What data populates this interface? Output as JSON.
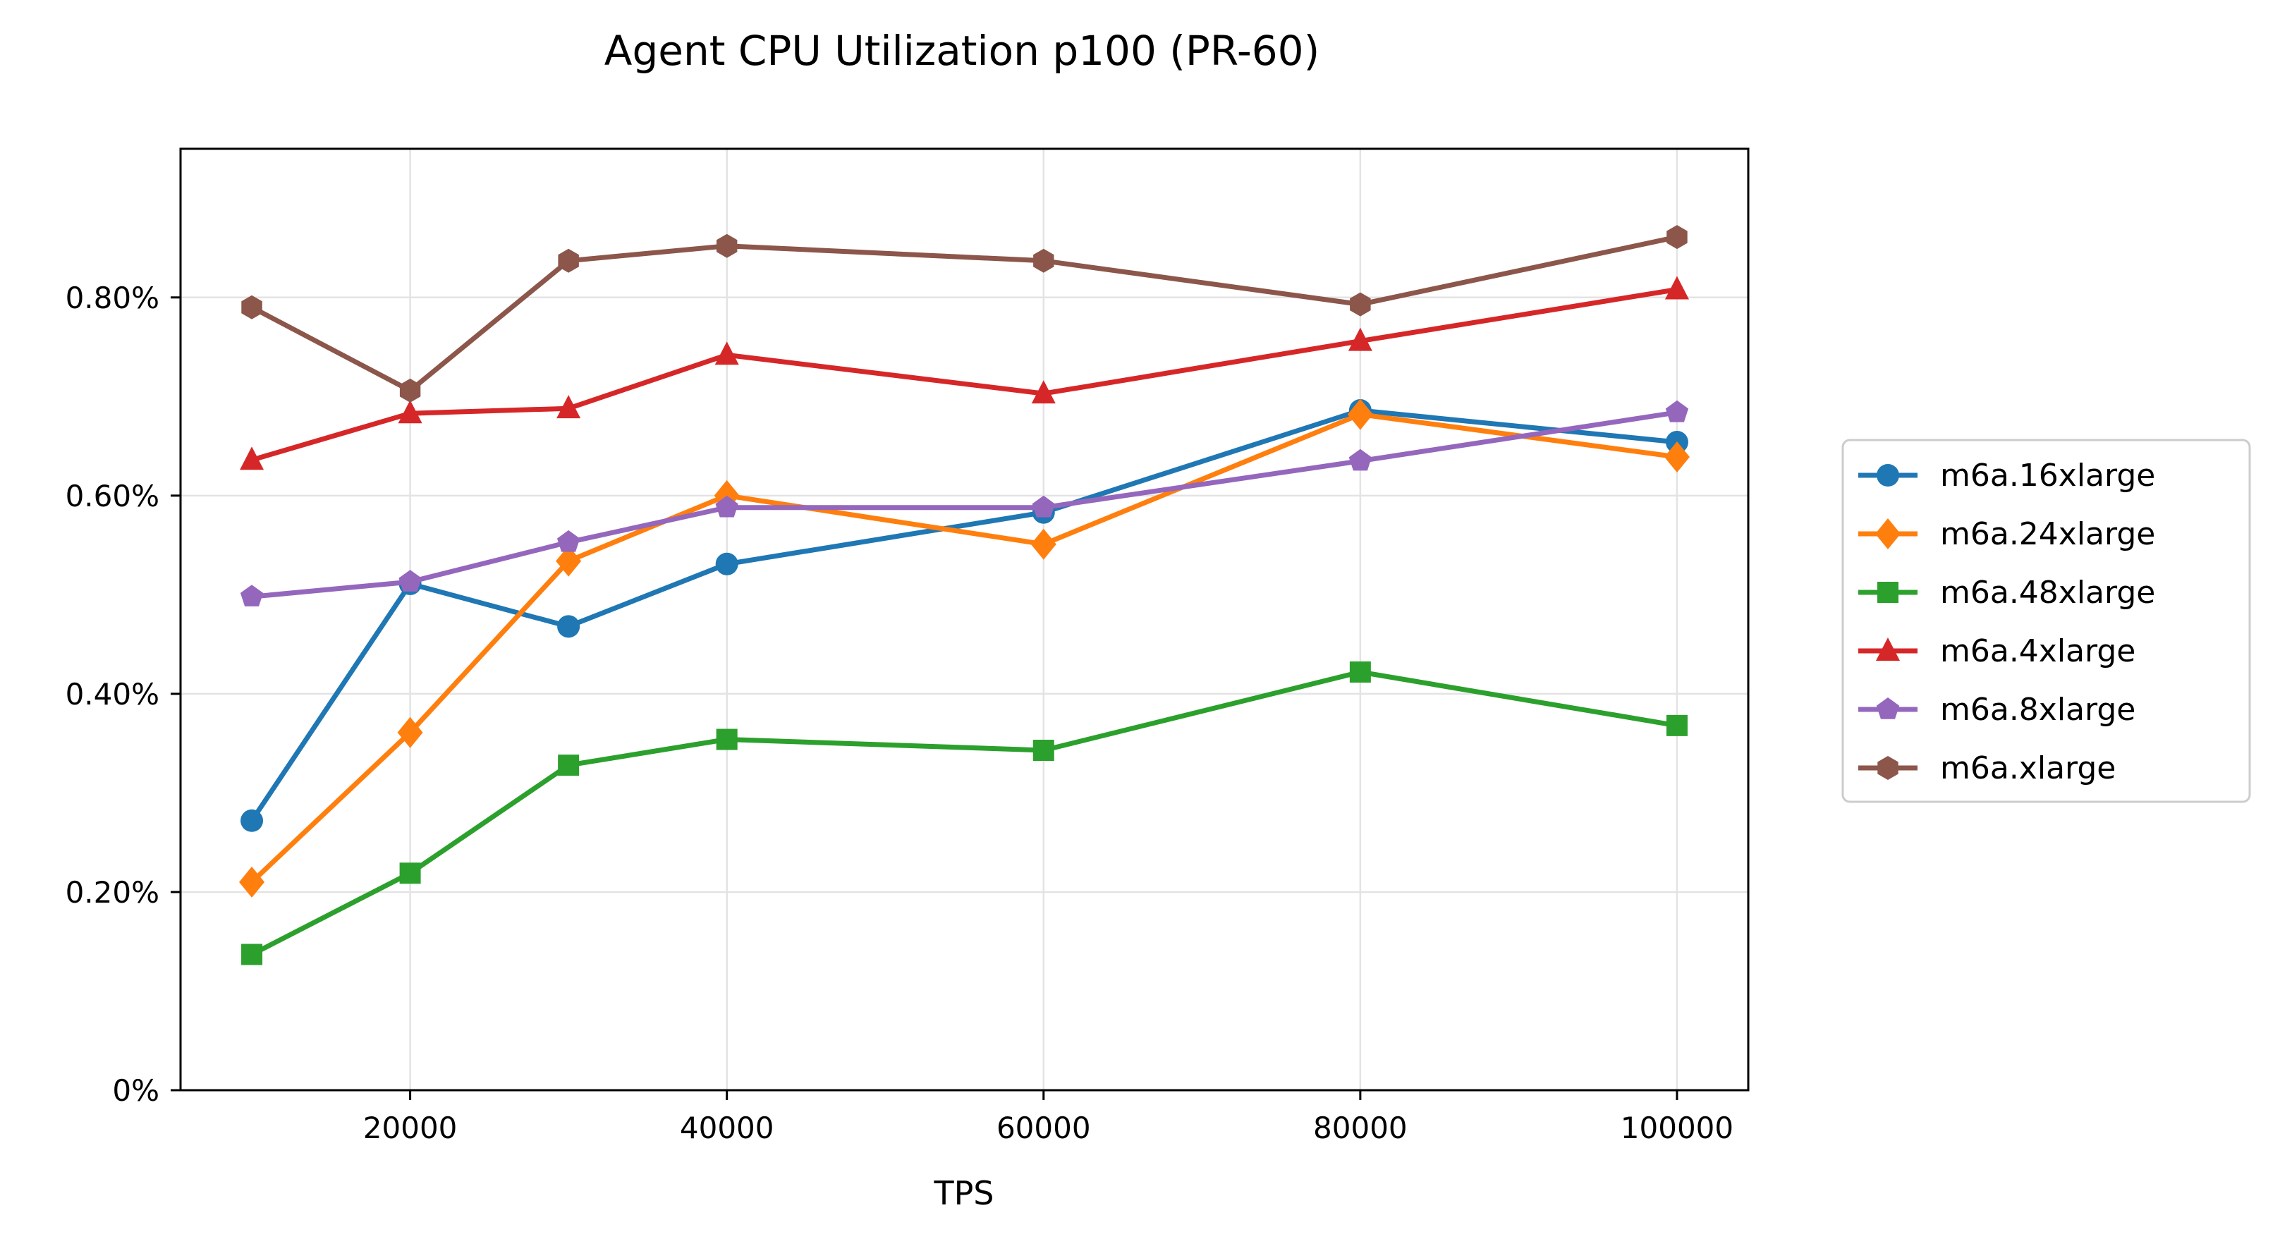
{
  "chart_data": {
    "type": "line",
    "title": "Agent CPU Utilization p100 (PR-60)",
    "xlabel": "TPS",
    "ylabel": "",
    "x": [
      10000,
      20000,
      30000,
      40000,
      60000,
      80000,
      100000
    ],
    "xlim": [
      5500,
      104500
    ],
    "ylim": [
      0,
      0.95
    ],
    "x_ticks": [
      20000,
      40000,
      60000,
      80000,
      100000
    ],
    "y_ticks": [
      0,
      0.2,
      0.4,
      0.6,
      0.8
    ],
    "y_tick_labels": [
      "0%",
      "0.20%",
      "0.40%",
      "0.60%",
      "0.80%"
    ],
    "grid": true,
    "legend_placement": "outside-right",
    "series": [
      {
        "name": "m6a.16xlarge",
        "color": "#1f77b4",
        "marker": "circle",
        "values": [
          0.272,
          0.511,
          0.468,
          0.531,
          0.583,
          0.686,
          0.654
        ]
      },
      {
        "name": "m6a.24xlarge",
        "color": "#ff7f0e",
        "marker": "diamond",
        "values": [
          0.21,
          0.361,
          0.534,
          0.6,
          0.551,
          0.682,
          0.639
        ]
      },
      {
        "name": "m6a.48xlarge",
        "color": "#2ca02c",
        "marker": "square",
        "values": [
          0.137,
          0.219,
          0.328,
          0.354,
          0.343,
          0.422,
          0.368
        ]
      },
      {
        "name": "m6a.4xlarge",
        "color": "#d62728",
        "marker": "triangle",
        "values": [
          0.636,
          0.683,
          0.688,
          0.742,
          0.703,
          0.756,
          0.808
        ]
      },
      {
        "name": "m6a.8xlarge",
        "color": "#9467bd",
        "marker": "pentagon",
        "values": [
          0.498,
          0.513,
          0.553,
          0.588,
          0.588,
          0.635,
          0.684
        ]
      },
      {
        "name": "m6a.xlarge",
        "color": "#8c564b",
        "marker": "hexagon",
        "values": [
          0.79,
          0.706,
          0.837,
          0.852,
          0.837,
          0.793,
          0.861
        ]
      }
    ]
  }
}
